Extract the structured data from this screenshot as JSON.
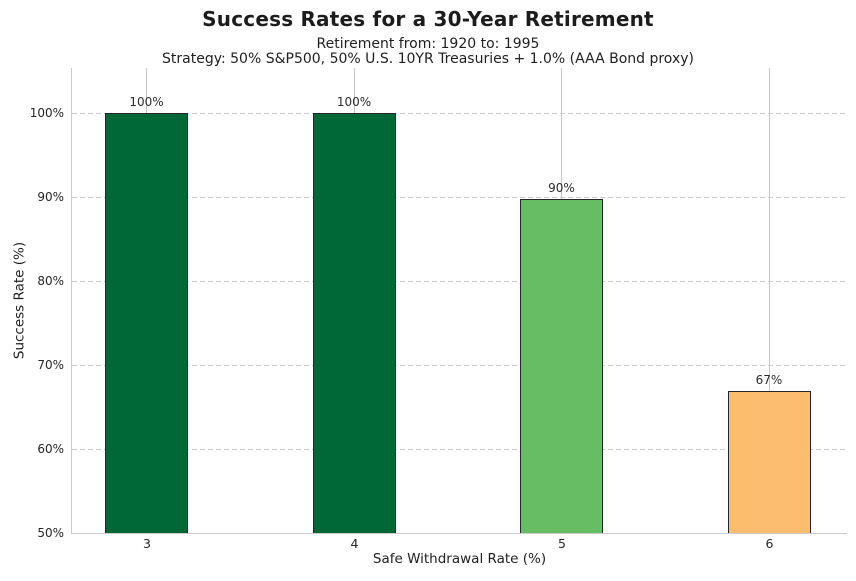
{
  "chart_data": {
    "type": "bar",
    "title": "Success Rates for a 30-Year Retirement",
    "subtitle1": "Retirement from: 1920 to: 1995",
    "subtitle2": "Strategy: 50% S&P500, 50% U.S. 10YR Treasuries + 1.0% (AAA Bond proxy)",
    "xlabel": "Safe Withdrawal Rate (%)",
    "ylabel": "Success Rate (%)",
    "categories": [
      "3",
      "4",
      "5",
      "6"
    ],
    "values": [
      100,
      100,
      89.7,
      66.9
    ],
    "value_labels": [
      "100%",
      "100%",
      "90%",
      "67%"
    ],
    "bar_colors": [
      "#006837",
      "#006837",
      "#66bd63",
      "#fcbe6e"
    ],
    "y_tick_values": [
      50,
      60,
      70,
      80,
      90,
      100
    ],
    "y_tick_labels": [
      "50%",
      "60%",
      "70%",
      "80%",
      "90%",
      "100%"
    ],
    "ylim": [
      50,
      105.3
    ],
    "grid": {
      "horizontal_style": "dashed",
      "vertical_style": "solid-at-category-centers"
    },
    "legend": "none",
    "colors": {
      "bar_edge": "#262626",
      "gridline": "#cbcbcb",
      "axis_spine": "#cbcbcb",
      "text": "#262626",
      "background": "#ffffff"
    }
  }
}
